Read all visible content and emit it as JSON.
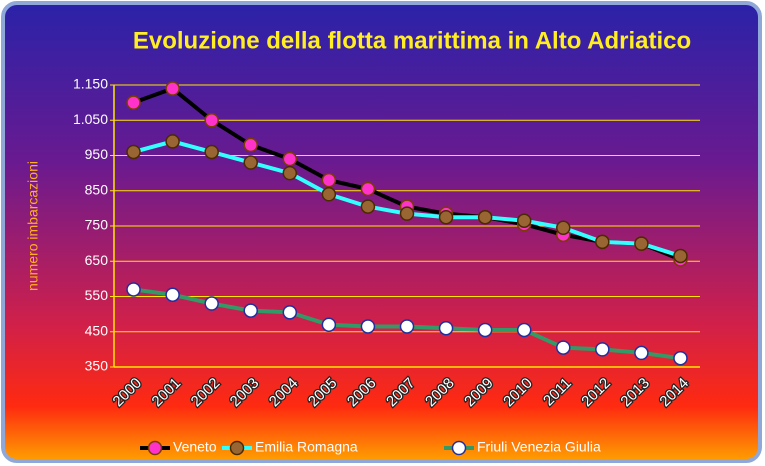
{
  "chart_data": {
    "type": "line",
    "title": "Evoluzione della flotta marittima in Alto Adriatico",
    "y_label": "numero imbarcazioni",
    "categories": [
      "2000",
      "2001",
      "2002",
      "2003",
      "2004",
      "2005",
      "2006",
      "2007",
      "2008",
      "2009",
      "2010",
      "2011",
      "2012",
      "2013",
      "2014"
    ],
    "series": [
      {
        "name": "Veneto",
        "color": "#000000",
        "marker_color": "#ff33cc",
        "marker_edge": "#7a3b00",
        "values": [
          1100,
          1140,
          1050,
          980,
          940,
          880,
          855,
          805,
          785,
          775,
          755,
          725,
          705,
          700,
          655
        ]
      },
      {
        "name": "Emilia Romagna",
        "color": "#33ffff",
        "marker_color": "#996633",
        "marker_edge": "#4a2a00",
        "values": [
          960,
          990,
          960,
          930,
          900,
          840,
          805,
          785,
          775,
          775,
          765,
          745,
          705,
          700,
          665
        ]
      },
      {
        "name": "Friuli Venezia Giulia",
        "color": "#339966",
        "marker_color": "#ffffff",
        "marker_edge": "#1f2fa0",
        "values": [
          570,
          555,
          530,
          510,
          505,
          470,
          465,
          465,
          460,
          455,
          455,
          405,
          400,
          390,
          375
        ]
      }
    ],
    "ylim": [
      350,
      1150
    ],
    "yticks": [
      350,
      450,
      550,
      650,
      750,
      850,
      950,
      {
        "value": 1050,
        "label": "1.050"
      },
      {
        "value": 1150,
        "label": "1.150"
      }
    ],
    "grid": true,
    "legend": "bottom"
  }
}
